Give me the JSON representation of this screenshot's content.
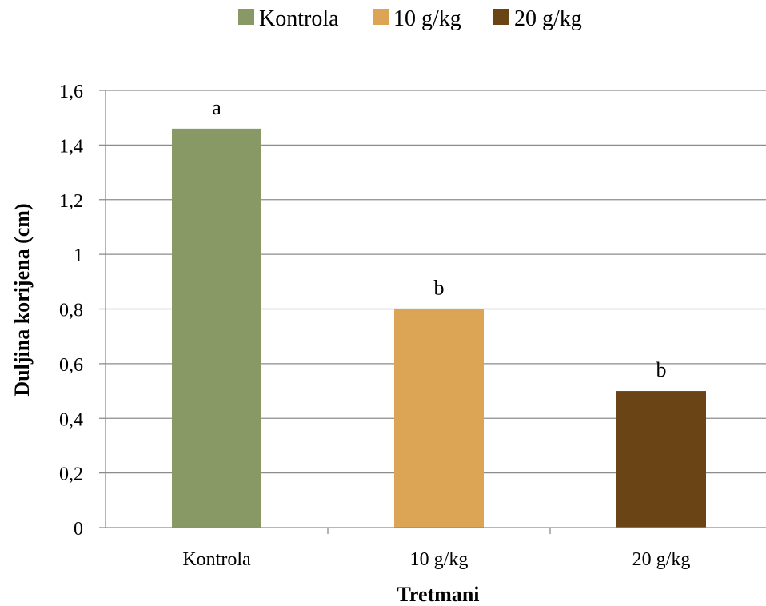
{
  "chart_data": {
    "type": "bar",
    "categories": [
      "Kontrola",
      "10 g/kg",
      "20 g/kg"
    ],
    "values": [
      1.46,
      0.8,
      0.5
    ],
    "bar_labels": [
      "a",
      "b",
      "b"
    ],
    "colors": [
      "#889966",
      "#DBA555",
      "#6B4416"
    ],
    "xlabel": "Tretmani",
    "ylabel": "Duljina korijena (cm)",
    "ylim": [
      0,
      1.6
    ],
    "yticks": [
      0,
      0.2,
      0.4,
      0.6,
      0.8,
      1,
      1.2,
      1.4,
      1.6
    ],
    "ytick_labels": [
      "0",
      "0,2",
      "0,4",
      "0,6",
      "0,8",
      "1",
      "1,2",
      "1,4",
      "1,6"
    ],
    "grid": true,
    "legend": {
      "placement": "top-center",
      "entries": [
        "Kontrola",
        "10 g/kg",
        "20 g/kg"
      ]
    }
  }
}
